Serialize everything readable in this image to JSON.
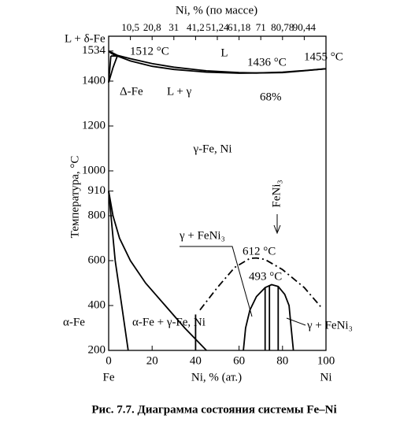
{
  "chart_data": {
    "type": "phase-diagram",
    "top_axis_label": "Ni, % (по массе)",
    "x_label": "Ni, % (ат.)",
    "y_label": "Температура, °C",
    "caption": "Рис.  7.7. Диаграмма состояния системы Fe–Ni",
    "xlim": [
      0,
      100
    ],
    "ylim": [
      200,
      1600
    ],
    "xticks": [
      0,
      20,
      40,
      60,
      80,
      100
    ],
    "x_end_labels": [
      "Fe",
      "Ni"
    ],
    "top_ticks": [
      {
        "value": 10,
        "label": "10,5"
      },
      {
        "value": 20,
        "label": "20,8"
      },
      {
        "value": 30,
        "label": "31"
      },
      {
        "value": 40,
        "label": "41,2"
      },
      {
        "value": 50,
        "label": "51,24"
      },
      {
        "value": 60,
        "label": "61,18"
      },
      {
        "value": 70,
        "label": "71"
      },
      {
        "value": 80,
        "label": "80,78"
      },
      {
        "value": 90,
        "label": "90,44"
      }
    ],
    "yticks": [
      200,
      400,
      600,
      800,
      910,
      1000,
      1200,
      1400,
      1534
    ],
    "series": [
      {
        "color": "#000000",
        "style": "solid",
        "x": [
          0,
          2,
          4,
          10,
          20,
          30,
          45,
          60,
          68,
          80,
          90,
          100
        ],
        "values": [
          1534,
          1525,
          1515,
          1500,
          1478,
          1462,
          1446,
          1438,
          1436,
          1440,
          1447,
          1455
        ]
      },
      {
        "color": "#000000",
        "style": "solid",
        "x": [
          4,
          10,
          20,
          30,
          45,
          60,
          68,
          80,
          90,
          100
        ],
        "values": [
          1512,
          1490,
          1466,
          1452,
          1440,
          1435,
          1436,
          1438,
          1446,
          1455
        ]
      },
      {
        "color": "#000000",
        "style": "solid",
        "x": [
          0,
          1,
          3.5
        ],
        "values": [
          1534,
          1525,
          1512
        ]
      },
      {
        "color": "#000000",
        "style": "solid",
        "x": [
          1,
          4
        ],
        "values": [
          1512,
          1512
        ]
      },
      {
        "color": "#000000",
        "style": "solid",
        "x": [
          0,
          1
        ],
        "values": [
          1394,
          1512
        ]
      },
      {
        "color": "#000000",
        "style": "solid",
        "x": [
          0,
          2,
          4
        ],
        "values": [
          1394,
          1460,
          1512
        ]
      },
      {
        "color": "#000000",
        "style": "solid",
        "x": [
          0,
          2,
          5,
          10,
          17,
          26,
          35,
          45
        ],
        "values": [
          910,
          800,
          700,
          600,
          500,
          400,
          300,
          200
        ]
      },
      {
        "color": "#000000",
        "style": "solid",
        "x": [
          0,
          3,
          6,
          9
        ],
        "values": [
          910,
          600,
          400,
          200
        ]
      },
      {
        "color": "#000000",
        "style": "solid",
        "x": [
          40,
          40
        ],
        "values": [
          200,
          360
        ]
      },
      {
        "color": "#000000",
        "style": "solid",
        "x": [
          62,
          63,
          65,
          68,
          72,
          75,
          78,
          81,
          83,
          84,
          85
        ],
        "values": [
          200,
          300,
          380,
          440,
          480,
          493,
          485,
          450,
          400,
          300,
          200
        ]
      },
      {
        "color": "#000000",
        "style": "solid",
        "x": [
          72,
          72
        ],
        "values": [
          200,
          480
        ]
      },
      {
        "color": "#000000",
        "style": "solid",
        "x": [
          74,
          74
        ],
        "values": [
          200,
          490
        ]
      },
      {
        "color": "#000000",
        "style": "solid",
        "x": [
          78,
          78
        ],
        "values": [
          200,
          485
        ]
      },
      {
        "color": "#000000",
        "style": "dashdot",
        "x": [
          42,
          50,
          58,
          65,
          68,
          72,
          80,
          90,
          98
        ],
        "values": [
          380,
          480,
          570,
          610,
          612,
          605,
          560,
          480,
          390
        ]
      }
    ],
    "annotations": [
      "L + δ-Fe",
      "1512 °C",
      "L",
      "1436 °C",
      "1455 °C",
      "Δ-Fe",
      "L + γ",
      "68%",
      "γ-Fe, Ni",
      "FeNi₃",
      "γ + FeNi₃",
      "612 °C",
      "493 °C",
      "α-Fe",
      "α-Fe + γ-Fe, Ni",
      "γ + FeNi₃"
    ]
  }
}
